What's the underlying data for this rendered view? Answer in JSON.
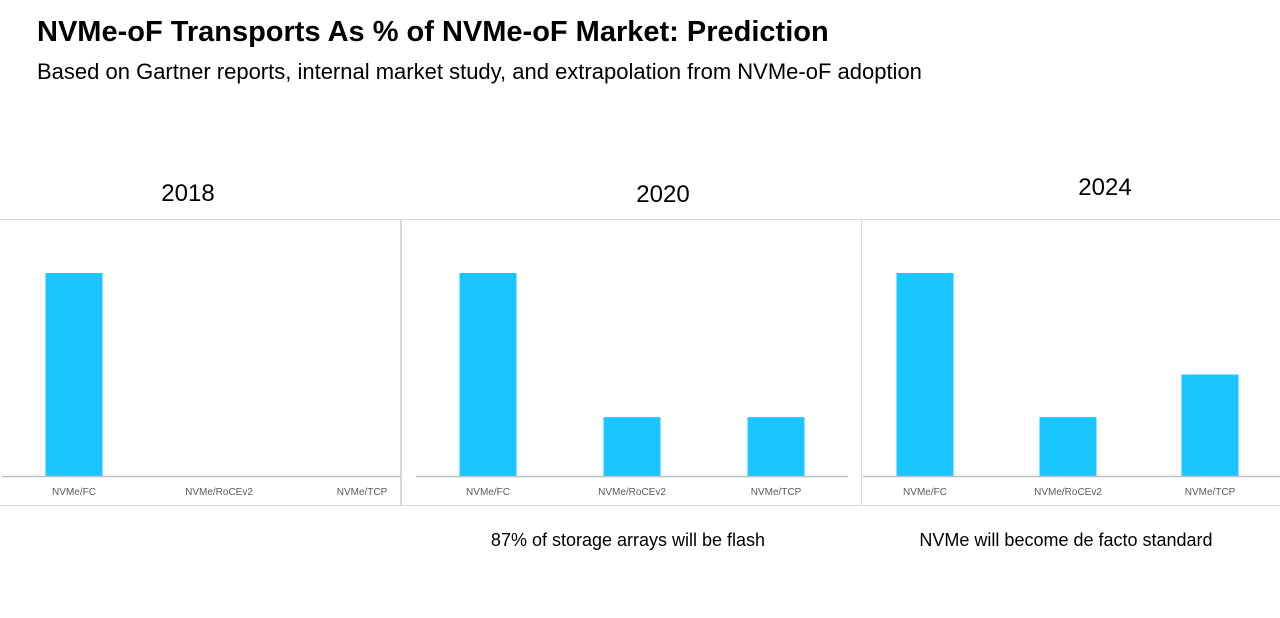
{
  "header": {
    "title": "NVMe-oF Transports As % of NVMe-oF Market: Prediction",
    "subtitle": "Based on Gartner reports, internal market study, and extrapolation from NVMe-oF adoption"
  },
  "colors": {
    "bar": "#1AC6FF",
    "axis": "#bfbfbf",
    "panel_border": "#d9d9d9",
    "tick_text": "#595959"
  },
  "chart_data": [
    {
      "type": "bar",
      "title": "2018",
      "note": "",
      "categories": [
        "NVMe/FC",
        "NVMe/RoCEv2",
        "NVMe/TCP"
      ],
      "values": [
        100,
        0,
        0
      ],
      "ylim": [
        0,
        100
      ],
      "grid": false,
      "xlabel": "",
      "ylabel": ""
    },
    {
      "type": "bar",
      "title": "2020",
      "note": "87% of storage arrays will be flash",
      "categories": [
        "NVMe/FC",
        "NVMe/RoCEv2",
        "NVMe/TCP"
      ],
      "values": [
        100,
        29,
        29
      ],
      "ylim": [
        0,
        100
      ],
      "grid": false,
      "xlabel": "",
      "ylabel": ""
    },
    {
      "type": "bar",
      "title": "2024",
      "note": "NVMe will become de facto standard",
      "categories": [
        "NVMe/FC",
        "NVMe/RoCEv2",
        "NVMe/TCP"
      ],
      "values": [
        100,
        29,
        50
      ],
      "ylim": [
        0,
        100
      ],
      "grid": false,
      "xlabel": "",
      "ylabel": ""
    }
  ]
}
